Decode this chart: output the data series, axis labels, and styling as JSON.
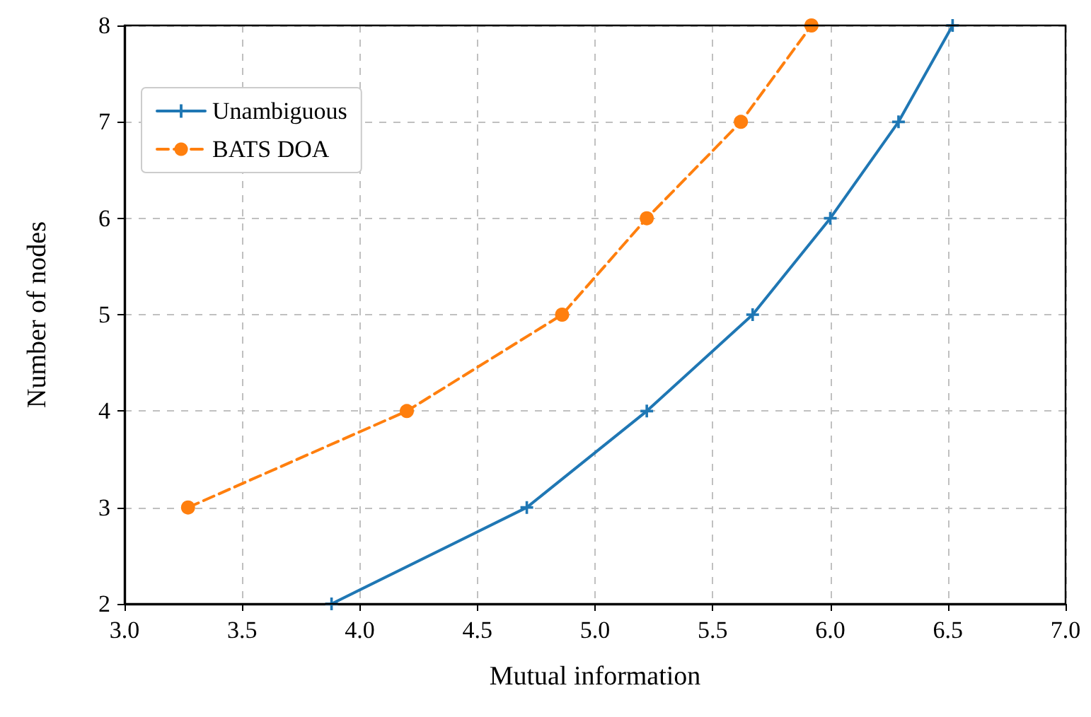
{
  "chart_data": {
    "type": "line",
    "xlabel": "Mutual information",
    "ylabel": "Number of nodes",
    "xlim": [
      3.0,
      7.0
    ],
    "xticks": [
      {
        "value": 3.0,
        "label": "3.0"
      },
      {
        "value": 3.5,
        "label": "3.5"
      },
      {
        "value": 4.0,
        "label": "4.0"
      },
      {
        "value": 4.5,
        "label": "4.5"
      },
      {
        "value": 5.0,
        "label": "5.0"
      },
      {
        "value": 5.5,
        "label": "5.5"
      },
      {
        "value": 6.0,
        "label": "6.0"
      },
      {
        "value": 6.5,
        "label": "6.5"
      },
      {
        "value": 7.0,
        "label": "7.0"
      }
    ],
    "ylim": [
      2,
      8
    ],
    "yticks": [
      2,
      3,
      4,
      5,
      6,
      7,
      8
    ],
    "grid": true,
    "legend": "top left",
    "series": [
      {
        "name": "Unambiguous",
        "color": "#1f77b4",
        "marker": "cross",
        "line_style": "solid",
        "x": [
          3.88,
          4.71,
          5.22,
          5.67,
          6.0,
          6.29,
          6.52
        ],
        "values": [
          2,
          3,
          4,
          5,
          6,
          7,
          8
        ]
      },
      {
        "name": "BATS DOA",
        "color": "#ff7f0e",
        "marker": "circle",
        "line_style": "dashed",
        "x": [
          3.27,
          4.2,
          4.86,
          5.22,
          5.62,
          5.92
        ],
        "values": [
          3,
          4,
          5,
          6,
          7,
          8
        ]
      }
    ]
  }
}
